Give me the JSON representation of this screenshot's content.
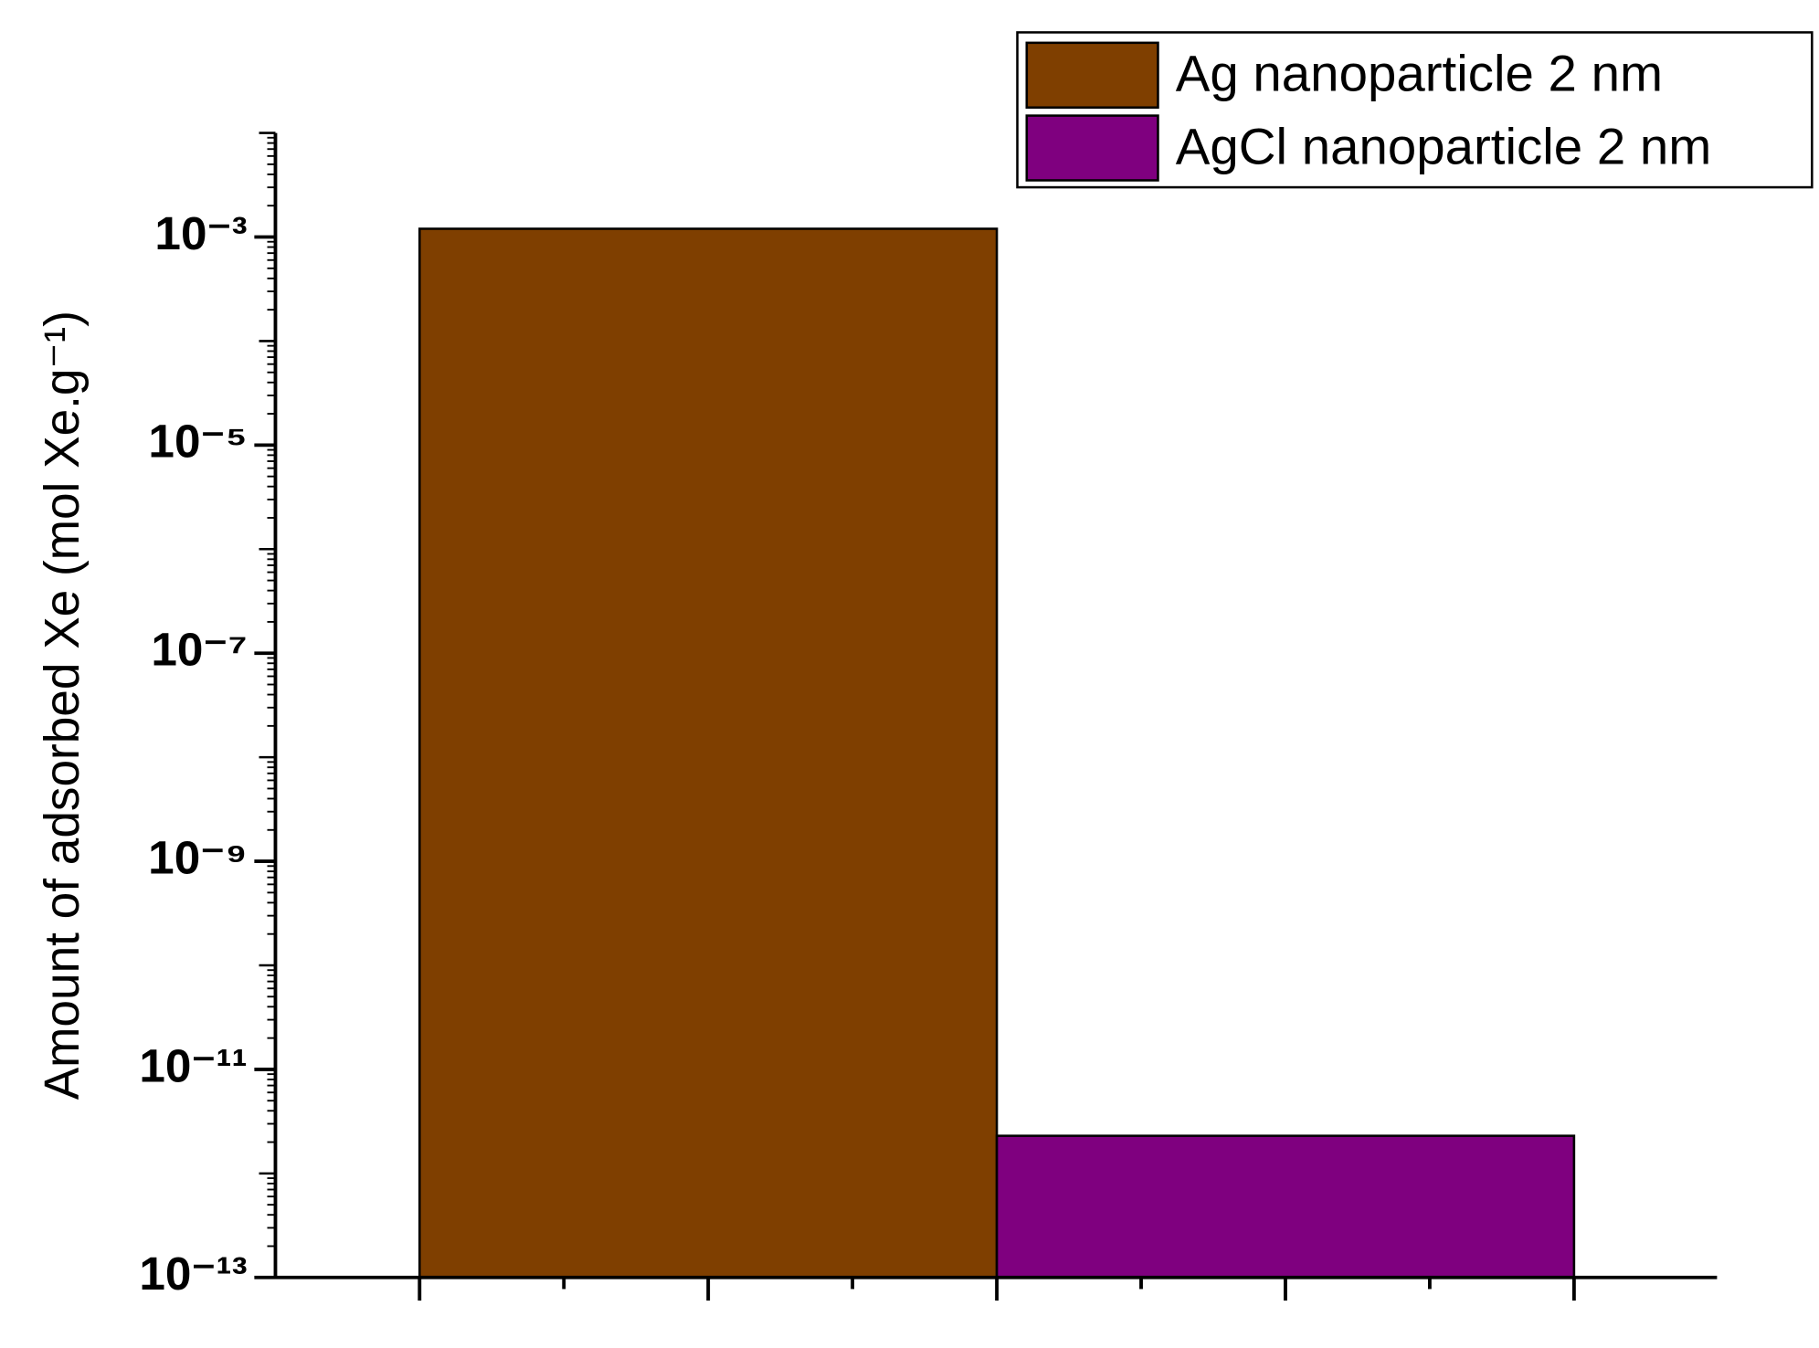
{
  "chart_data": {
    "type": "bar",
    "ylabel": "Amount of adsorbed Xe (mol Xe.g⁻¹)",
    "categories": [
      null
    ],
    "series": [
      {
        "name": "Ag nanoparticle 2 nm",
        "color": "#7f3f00",
        "values": [
          0.0012
        ]
      },
      {
        "name": "AgCl nanoparticle 2 nm",
        "color": "#7f007f",
        "values": [
          2.3e-12
        ]
      }
    ],
    "log_y": true,
    "ylim": [
      1e-13,
      0.01
    ],
    "yticks": [
      {
        "value": 1e-13,
        "label": "10⁻¹³"
      },
      {
        "value": 1e-11,
        "label": "10⁻¹¹"
      },
      {
        "value": 1e-09,
        "label": "10⁻⁹"
      },
      {
        "value": 1e-07,
        "label": "10⁻⁷"
      },
      {
        "value": 1e-05,
        "label": "10⁻⁵"
      },
      {
        "value": 0.001,
        "label": "10⁻³"
      }
    ],
    "legend": "upper right",
    "grid": false
  }
}
